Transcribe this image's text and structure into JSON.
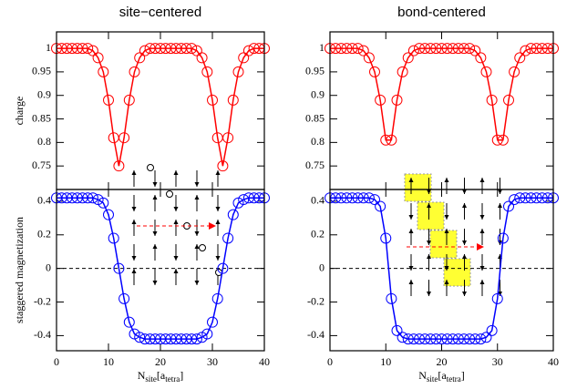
{
  "chart_data": [
    {
      "type": "line",
      "title": "site−centered",
      "y_label": "charge",
      "color": "#ff0000",
      "x": [
        0,
        1,
        2,
        3,
        4,
        5,
        6,
        7,
        8,
        9,
        10,
        11,
        12,
        13,
        14,
        15,
        16,
        17,
        18,
        19,
        20,
        21,
        22,
        23,
        24,
        25,
        26,
        27,
        28,
        29,
        30,
        31,
        32,
        33,
        34,
        35,
        36,
        37,
        38,
        39,
        40
      ],
      "values": [
        1,
        1,
        1,
        1,
        1,
        1,
        1,
        0.995,
        0.98,
        0.95,
        0.89,
        0.81,
        0.75,
        0.81,
        0.89,
        0.95,
        0.98,
        0.995,
        1,
        1,
        1,
        1,
        1,
        1,
        1,
        1,
        1,
        0.995,
        0.98,
        0.95,
        0.89,
        0.81,
        0.75,
        0.81,
        0.89,
        0.95,
        0.98,
        0.995,
        1,
        1,
        1
      ],
      "xlim": [
        0,
        40
      ],
      "ylim": [
        0.7,
        1.035
      ],
      "yticks": [
        0.75,
        0.8,
        0.85,
        0.9,
        0.95,
        1
      ]
    },
    {
      "type": "line",
      "title": "bond-centered",
      "color": "#ff0000",
      "x": [
        0,
        1,
        2,
        3,
        4,
        5,
        6,
        7,
        8,
        9,
        10,
        11,
        12,
        13,
        14,
        15,
        16,
        17,
        18,
        19,
        20,
        21,
        22,
        23,
        24,
        25,
        26,
        27,
        28,
        29,
        30,
        31,
        32,
        33,
        34,
        35,
        36,
        37,
        38,
        39,
        40
      ],
      "values": [
        1,
        1,
        1,
        1,
        1,
        1,
        0.995,
        0.98,
        0.95,
        0.89,
        0.805,
        0.805,
        0.89,
        0.95,
        0.98,
        0.995,
        1,
        1,
        1,
        1,
        1,
        1,
        1,
        1,
        1,
        1,
        0.995,
        0.98,
        0.95,
        0.89,
        0.805,
        0.805,
        0.89,
        0.95,
        0.98,
        0.995,
        1,
        1,
        1,
        1,
        1
      ],
      "xlim": [
        0,
        40
      ],
      "ylim": [
        0.7,
        1.035
      ],
      "yticks": [
        0.75,
        0.8,
        0.85,
        0.9,
        0.95,
        1
      ]
    },
    {
      "type": "line",
      "y_label": "staggered magnetization",
      "color": "#0000ff",
      "x_label": [
        {
          "text": "N",
          "sub": false
        },
        {
          "text": "site",
          "sub": true
        },
        {
          "text": "[a",
          "sub": false
        },
        {
          "text": "tetra",
          "sub": true
        },
        {
          "text": "]",
          "sub": false
        }
      ],
      "x": [
        0,
        1,
        2,
        3,
        4,
        5,
        6,
        7,
        8,
        9,
        10,
        11,
        12,
        13,
        14,
        15,
        16,
        17,
        18,
        19,
        20,
        21,
        22,
        23,
        24,
        25,
        26,
        27,
        28,
        29,
        30,
        31,
        32,
        33,
        34,
        35,
        36,
        37,
        38,
        39,
        40
      ],
      "values": [
        0.42,
        0.42,
        0.42,
        0.42,
        0.42,
        0.42,
        0.42,
        0.42,
        0.41,
        0.39,
        0.32,
        0.18,
        0,
        -0.18,
        -0.32,
        -0.39,
        -0.41,
        -0.42,
        -0.42,
        -0.42,
        -0.42,
        -0.42,
        -0.42,
        -0.42,
        -0.42,
        -0.42,
        -0.42,
        -0.42,
        -0.41,
        -0.39,
        -0.32,
        -0.18,
        0,
        0.18,
        0.32,
        0.39,
        0.41,
        0.42,
        0.42,
        0.42,
        0.42
      ],
      "xlim": [
        0,
        40
      ],
      "xticks": [
        0,
        10,
        20,
        30,
        40
      ],
      "ylim": [
        -0.49,
        0.47
      ],
      "yticks": [
        -0.4,
        -0.2,
        0,
        0.2,
        0.4
      ],
      "reference_line": 0
    },
    {
      "type": "line",
      "color": "#0000ff",
      "x_label": [
        {
          "text": "N",
          "sub": false
        },
        {
          "text": "site",
          "sub": true
        },
        {
          "text": "[a",
          "sub": false
        },
        {
          "text": "tetra",
          "sub": true
        },
        {
          "text": "]",
          "sub": false
        }
      ],
      "x": [
        0,
        1,
        2,
        3,
        4,
        5,
        6,
        7,
        8,
        9,
        10,
        11,
        12,
        13,
        14,
        15,
        16,
        17,
        18,
        19,
        20,
        21,
        22,
        23,
        24,
        25,
        26,
        27,
        28,
        29,
        30,
        31,
        32,
        33,
        34,
        35,
        36,
        37,
        38,
        39,
        40
      ],
      "values": [
        0.42,
        0.42,
        0.42,
        0.42,
        0.42,
        0.42,
        0.42,
        0.42,
        0.41,
        0.37,
        0.18,
        -0.18,
        -0.37,
        -0.41,
        -0.42,
        -0.42,
        -0.42,
        -0.42,
        -0.42,
        -0.42,
        -0.42,
        -0.42,
        -0.42,
        -0.42,
        -0.42,
        -0.42,
        -0.42,
        -0.42,
        -0.41,
        -0.37,
        -0.18,
        0.18,
        0.37,
        0.41,
        0.42,
        0.42,
        0.42,
        0.42,
        0.42,
        0.42,
        0.42
      ],
      "xlim": [
        0,
        40
      ],
      "xticks": [
        0,
        10,
        20,
        30,
        40
      ],
      "ylim": [
        -0.49,
        0.47
      ],
      "yticks": [
        -0.4,
        -0.2,
        0,
        0.2,
        0.4
      ],
      "reference_line": 0
    }
  ]
}
